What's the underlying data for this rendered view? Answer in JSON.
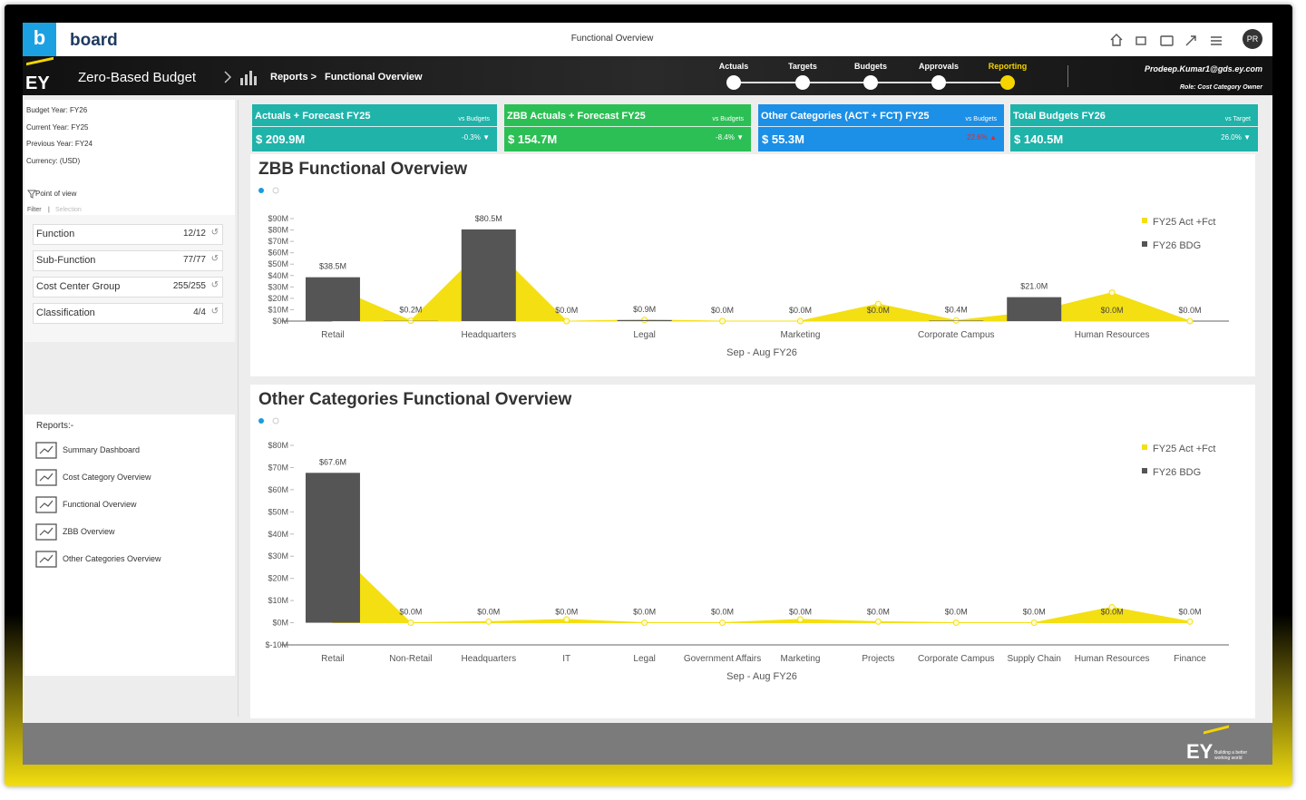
{
  "header": {
    "logo": "board",
    "title": "Functional Overview",
    "avatar": "PR"
  },
  "nav": {
    "brand": "EY",
    "app": "Zero-Based Budget",
    "breadcrumb": [
      "Reports >",
      "Functional Overview"
    ],
    "steps": [
      "Actuals",
      "Targets",
      "Budgets",
      "Approvals",
      "Reporting"
    ],
    "active_step": 4,
    "user": "Prodeep.Kumar1@gds.ey.com",
    "role": "Role: Cost Category Owner"
  },
  "sidebar": {
    "info": [
      "Budget Year:  FY26",
      "Current Year:  FY25",
      "Previous Year: FY24",
      "Currency: (USD)"
    ],
    "pov": "Point of view",
    "filter": "Filter",
    "selection": "Selection",
    "filters": [
      {
        "label": "Function",
        "count": "12/12"
      },
      {
        "label": "Sub-Function",
        "count": "77/77"
      },
      {
        "label": "Cost Center Group",
        "count": "255/255"
      },
      {
        "label": "Classification",
        "count": "4/4"
      }
    ],
    "reports_title": "Reports:-",
    "reports": [
      "Summary Dashboard",
      "Cost Category Overview",
      "Functional Overview",
      "ZBB Overview",
      "Other Categories Overview"
    ]
  },
  "kpis": [
    {
      "title": "Actuals + Forecast FY25",
      "compare": "vs Budgets",
      "value": "$ 209.9M",
      "change": "-0.3% ▼",
      "color": "#1fb3aa",
      "change_color": "#ffffff"
    },
    {
      "title": "ZBB Actuals + Forecast FY25",
      "compare": "vs Budgets",
      "value": "$ 154.7M",
      "change": "-8.4% ▼",
      "color": "#2cbf55",
      "change_color": "#ffffff"
    },
    {
      "title": "Other Categories (ACT + FCT) FY25",
      "compare": "vs Budgets",
      "value": "$ 55.3M",
      "change": "22.6% ▲",
      "color": "#1c8fe6",
      "change_color": "#e8262a"
    },
    {
      "title": "Total Budgets FY26",
      "compare": "vs Target",
      "value": "$ 140.5M",
      "change": "26.0% ▼",
      "color": "#1fb3aa",
      "change_color": "#ffffff"
    }
  ],
  "chart_data": [
    {
      "type": "combo",
      "title": "ZBB Functional Overview",
      "x_label": "Sep - Aug FY26",
      "categories": [
        "Retail",
        null,
        "Headquarters",
        null,
        "Legal",
        null,
        "Marketing",
        null,
        "Corporate Campus",
        null,
        "Human Resources",
        null
      ],
      "series": [
        {
          "name": "FY25 Act +Fct",
          "type": "area",
          "color": "#f4df12",
          "values": [
            30,
            0.3,
            68,
            0,
            1,
            0,
            0,
            15,
            0.5,
            8,
            25,
            0
          ]
        },
        {
          "name": "FY26 BDG",
          "type": "bar",
          "color": "#555555",
          "values": [
            38.5,
            0.2,
            80.5,
            0,
            0.9,
            0,
            0,
            0,
            0.4,
            21.0,
            0,
            0
          ],
          "value_labels": [
            "$38.5M",
            "$0.2M",
            "$80.5M",
            "$0.0M",
            "$0.9M",
            "$0.0M",
            "$0.0M",
            "$0.0M",
            "$0.4M",
            "$21.0M",
            "$0.0M",
            "$0.0M"
          ]
        }
      ],
      "ylim": [
        0,
        90
      ],
      "yticks": [
        {
          "value": 0,
          "label": "$0M"
        },
        {
          "value": 10,
          "label": "$10M"
        },
        {
          "value": 20,
          "label": "$20M"
        },
        {
          "value": 30,
          "label": "$30M"
        },
        {
          "value": 40,
          "label": "$40M"
        },
        {
          "value": 50,
          "label": "$50M"
        },
        {
          "value": 60,
          "label": "$60M"
        },
        {
          "value": 70,
          "label": "$70M"
        },
        {
          "value": 80,
          "label": "$80M"
        },
        {
          "value": 90,
          "label": "$90M"
        }
      ],
      "grid": false,
      "legend": "top-right"
    },
    {
      "type": "combo",
      "title": "Other Categories Functional Overview",
      "x_label": "Sep - Aug FY26",
      "categories": [
        "Retail",
        "Non-Retail",
        "Headquarters",
        "IT",
        "Legal",
        "Government Affairs",
        "Marketing",
        "Projects",
        "Corporate Campus",
        "Supply Chain",
        "Human Resources",
        "Finance"
      ],
      "series": [
        {
          "name": "FY25 Act +Fct",
          "type": "area",
          "color": "#f4df12",
          "values": [
            34,
            0,
            0.5,
            1.5,
            0,
            0,
            1.5,
            0.5,
            0,
            0,
            7,
            0.5
          ]
        },
        {
          "name": "FY26 BDG",
          "type": "bar",
          "color": "#555555",
          "values": [
            67.6,
            0,
            0,
            0,
            0,
            0,
            0,
            0,
            0,
            0,
            0,
            0
          ],
          "value_labels": [
            "$67.6M",
            "$0.0M",
            "$0.0M",
            "$0.0M",
            "$0.0M",
            "$0.0M",
            "$0.0M",
            "$0.0M",
            "$0.0M",
            "$0.0M",
            "$0.0M",
            "$0.0M"
          ]
        }
      ],
      "ylim": [
        -10,
        80
      ],
      "yticks": [
        {
          "value": -10,
          "label": "$-10M"
        },
        {
          "value": 0,
          "label": "$0M"
        },
        {
          "value": 10,
          "label": "$10M"
        },
        {
          "value": 20,
          "label": "$20M"
        },
        {
          "value": 30,
          "label": "$30M"
        },
        {
          "value": 40,
          "label": "$40M"
        },
        {
          "value": 50,
          "label": "$50M"
        },
        {
          "value": 60,
          "label": "$60M"
        },
        {
          "value": 70,
          "label": "$70M"
        },
        {
          "value": 80,
          "label": "$80M"
        }
      ],
      "grid": false,
      "legend": "top-right"
    }
  ],
  "footer": {
    "brand": "EY",
    "tagline": "Building a better working world"
  }
}
